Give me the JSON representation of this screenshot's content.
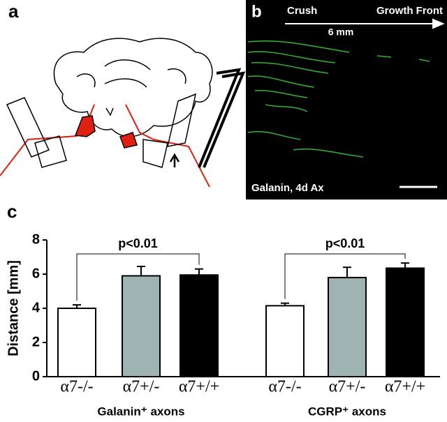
{
  "panel_a": {
    "label": "a"
  },
  "panel_b": {
    "label": "b",
    "start": "Crush",
    "end": "Growth Front",
    "distance": "6 mm",
    "caption": "Galanin, 4d Ax"
  },
  "chart_data": {
    "type": "bar",
    "panel_label": "c",
    "y_label": "Distance [mm]",
    "ylim": [
      0,
      8
    ],
    "yticks": [
      0,
      2,
      4,
      6,
      8
    ],
    "groups": [
      {
        "label": "Galanin⁺ axons",
        "annotation": "p<0.01",
        "categories": [
          "α7-/-",
          "α7+/-",
          "α7+/+"
        ],
        "values": [
          4.0,
          5.9,
          5.95
        ],
        "errors": [
          0.2,
          0.55,
          0.35
        ],
        "colors": [
          "#ffffff",
          "#9fb3b3",
          "#000000"
        ]
      },
      {
        "label": "CGRP⁺ axons",
        "annotation": "p<0.01",
        "categories": [
          "α7-/-",
          "α7+/-",
          "α7+/+"
        ],
        "values": [
          4.15,
          5.8,
          6.35
        ],
        "errors": [
          0.15,
          0.6,
          0.3
        ],
        "colors": [
          "#ffffff",
          "#9fb3b3",
          "#000000"
        ]
      }
    ]
  }
}
